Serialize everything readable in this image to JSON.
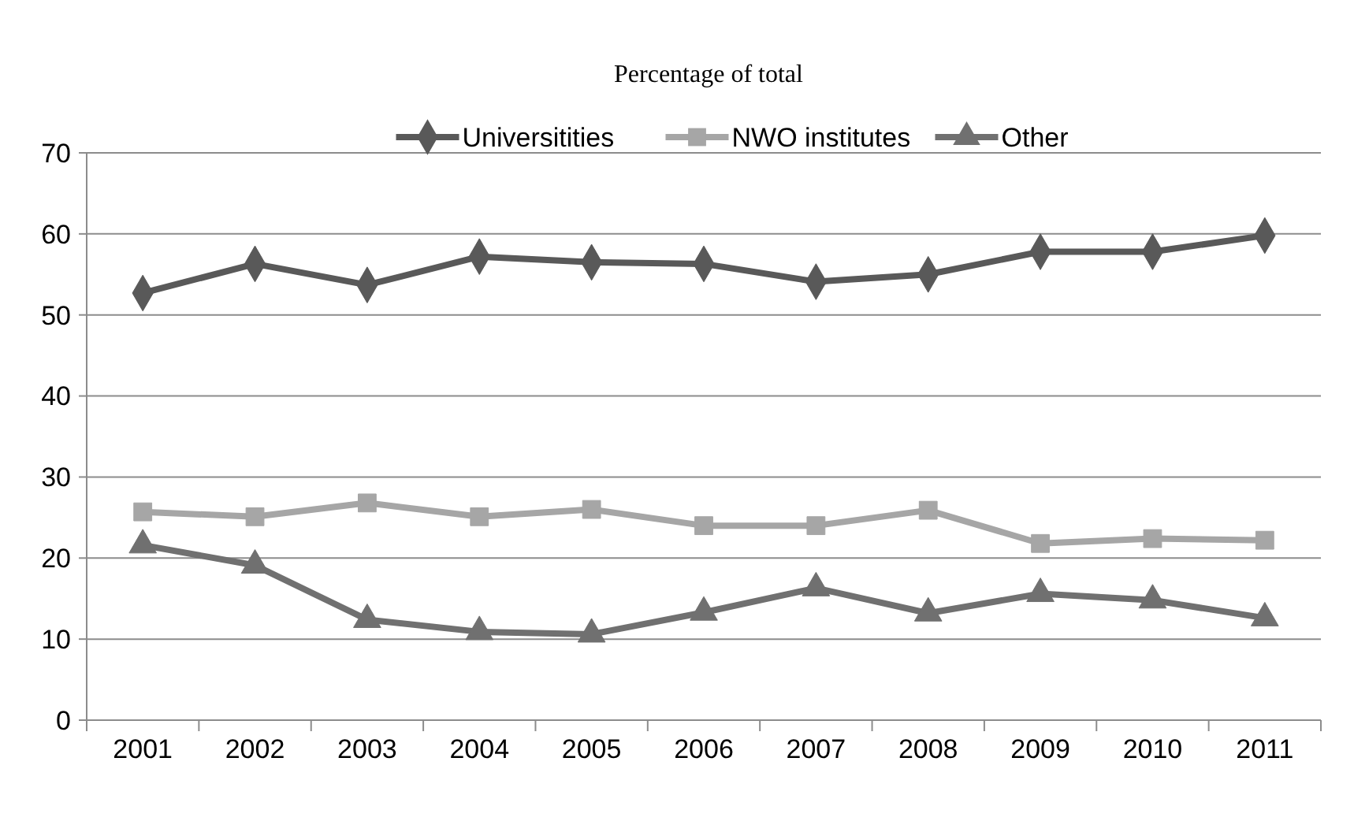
{
  "chart_data": {
    "type": "line",
    "title": "Percentage of total",
    "categories": [
      "2001",
      "2002",
      "2003",
      "2004",
      "2005",
      "2006",
      "2007",
      "2008",
      "2009",
      "2010",
      "2011"
    ],
    "series": [
      {
        "name": "Universitities",
        "color": "#595959",
        "marker": "diamond",
        "values": [
          52.7,
          56.3,
          53.7,
          57.2,
          56.5,
          56.3,
          54.1,
          55.0,
          57.8,
          57.8,
          59.8
        ]
      },
      {
        "name": "NWO institutes",
        "color": "#a6a6a6",
        "marker": "square",
        "values": [
          25.7,
          25.1,
          26.8,
          25.1,
          26.0,
          24.0,
          24.0,
          25.9,
          21.8,
          22.4,
          22.2
        ]
      },
      {
        "name": "Other",
        "color": "#707070",
        "marker": "triangle",
        "values": [
          21.6,
          19.1,
          12.4,
          10.9,
          10.6,
          13.3,
          16.3,
          13.2,
          15.6,
          14.8,
          12.6
        ]
      }
    ],
    "ylim": [
      0,
      70
    ],
    "yticks": [
      0,
      10,
      20,
      30,
      40,
      50,
      60,
      70
    ],
    "grid": "y",
    "legend": "top"
  }
}
